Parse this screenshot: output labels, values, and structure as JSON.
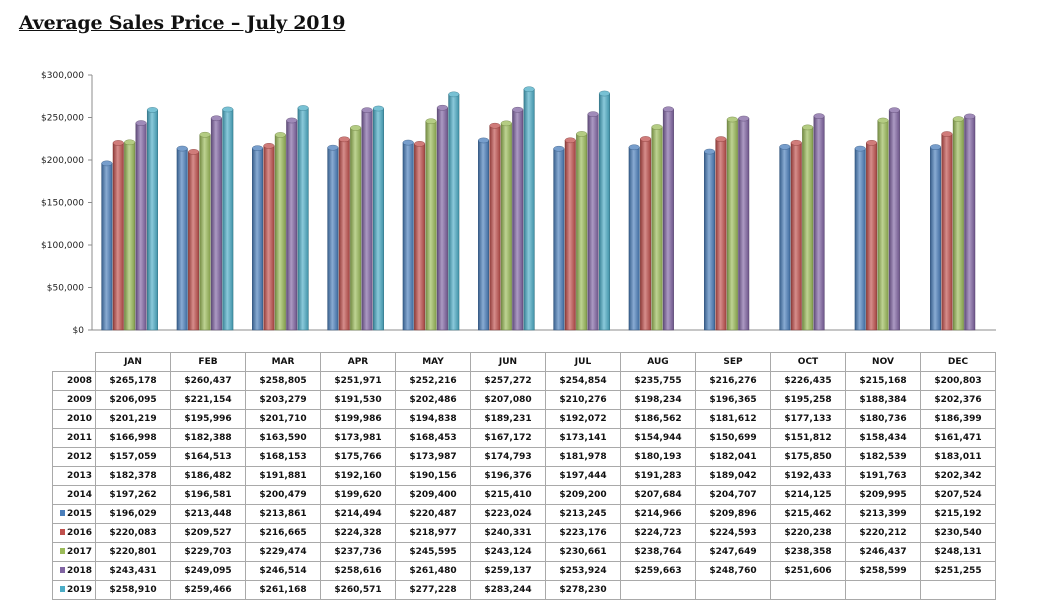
{
  "page": {
    "title": "Average Sales Price – July 2019"
  },
  "chart_data": {
    "type": "bar",
    "title": "Average Sales Price – July 2019",
    "xlabel": "",
    "ylabel": "",
    "ylim": [
      0,
      300000
    ],
    "yticks": [
      "$0",
      "$50,000",
      "$100,000",
      "$150,000",
      "$200,000",
      "$250,000",
      "$300,000"
    ],
    "ytick_values": [
      0,
      50000,
      100000,
      150000,
      200000,
      250000,
      300000
    ],
    "grid": false,
    "legend": "in-table",
    "categories": [
      "JAN",
      "FEB",
      "MAR",
      "APR",
      "MAY",
      "JUN",
      "JUL",
      "AUG",
      "SEP",
      "OCT",
      "NOV",
      "DEC"
    ],
    "series": [
      {
        "name": "2015",
        "color": "#4a7ebb",
        "values": [
          196029,
          213448,
          213861,
          214494,
          220487,
          223024,
          213245,
          214966,
          209896,
          215462,
          213399,
          215192
        ]
      },
      {
        "name": "2016",
        "color": "#c0504d",
        "values": [
          220083,
          209527,
          216665,
          224328,
          218977,
          240331,
          223176,
          224723,
          224593,
          220238,
          220212,
          230540
        ]
      },
      {
        "name": "2017",
        "color": "#9bbb59",
        "values": [
          220801,
          229703,
          229474,
          237736,
          245595,
          243124,
          230661,
          238764,
          247649,
          238358,
          246437,
          248131
        ]
      },
      {
        "name": "2018",
        "color": "#8064a2",
        "values": [
          243431,
          249095,
          246514,
          258616,
          261480,
          259137,
          253924,
          259663,
          248760,
          251606,
          258599,
          251255
        ]
      },
      {
        "name": "2019",
        "color": "#4bacc6",
        "values": [
          258910,
          259466,
          261168,
          260571,
          277228,
          283244,
          278230,
          null,
          null,
          null,
          null,
          null
        ]
      }
    ],
    "table": {
      "header": [
        "JAN",
        "FEB",
        "MAR",
        "APR",
        "MAY",
        "JUN",
        "JUL",
        "AUG",
        "SEP",
        "OCT",
        "NOV",
        "DEC"
      ],
      "rows": [
        {
          "year": "2008",
          "cells": [
            "$265,178",
            "$260,437",
            "$258,805",
            "$251,971",
            "$252,216",
            "$257,272",
            "$254,854",
            "$235,755",
            "$216,276",
            "$226,435",
            "$215,168",
            "$200,803"
          ]
        },
        {
          "year": "2009",
          "cells": [
            "$206,095",
            "$221,154",
            "$203,279",
            "$191,530",
            "$202,486",
            "$207,080",
            "$210,276",
            "$198,234",
            "$196,365",
            "$195,258",
            "$188,384",
            "$202,376"
          ]
        },
        {
          "year": "2010",
          "cells": [
            "$201,219",
            "$195,996",
            "$201,710",
            "$199,986",
            "$194,838",
            "$189,231",
            "$192,072",
            "$186,562",
            "$181,612",
            "$177,133",
            "$180,736",
            "$186,399"
          ]
        },
        {
          "year": "2011",
          "cells": [
            "$166,998",
            "$182,388",
            "$163,590",
            "$173,981",
            "$168,453",
            "$167,172",
            "$173,141",
            "$154,944",
            "$150,699",
            "$151,812",
            "$158,434",
            "$161,471"
          ]
        },
        {
          "year": "2012",
          "cells": [
            "$157,059",
            "$164,513",
            "$168,153",
            "$175,766",
            "$173,987",
            "$174,793",
            "$181,978",
            "$180,193",
            "$182,041",
            "$175,850",
            "$182,539",
            "$183,011"
          ]
        },
        {
          "year": "2013",
          "cells": [
            "$182,378",
            "$186,482",
            "$191,881",
            "$192,160",
            "$190,156",
            "$196,376",
            "$197,444",
            "$191,283",
            "$189,042",
            "$192,433",
            "$191,763",
            "$202,342"
          ]
        },
        {
          "year": "2014",
          "cells": [
            "$197,262",
            "$196,581",
            "$200,479",
            "$199,620",
            "$209,400",
            "$215,410",
            "$209,200",
            "$207,684",
            "$204,707",
            "$214,125",
            "$209,995",
            "$207,524"
          ]
        },
        {
          "year": "2015",
          "legend_color": "#4a7ebb",
          "cells": [
            "$196,029",
            "$213,448",
            "$213,861",
            "$214,494",
            "$220,487",
            "$223,024",
            "$213,245",
            "$214,966",
            "$209,896",
            "$215,462",
            "$213,399",
            "$215,192"
          ]
        },
        {
          "year": "2016",
          "legend_color": "#c0504d",
          "cells": [
            "$220,083",
            "$209,527",
            "$216,665",
            "$224,328",
            "$218,977",
            "$240,331",
            "$223,176",
            "$224,723",
            "$224,593",
            "$220,238",
            "$220,212",
            "$230,540"
          ]
        },
        {
          "year": "2017",
          "legend_color": "#9bbb59",
          "cells": [
            "$220,801",
            "$229,703",
            "$229,474",
            "$237,736",
            "$245,595",
            "$243,124",
            "$230,661",
            "$238,764",
            "$247,649",
            "$238,358",
            "$246,437",
            "$248,131"
          ]
        },
        {
          "year": "2018",
          "legend_color": "#8064a2",
          "cells": [
            "$243,431",
            "$249,095",
            "$246,514",
            "$258,616",
            "$261,480",
            "$259,137",
            "$253,924",
            "$259,663",
            "$248,760",
            "$251,606",
            "$258,599",
            "$251,255"
          ]
        },
        {
          "year": "2019",
          "legend_color": "#4bacc6",
          "cells": [
            "$258,910",
            "$259,466",
            "$261,168",
            "$260,571",
            "$277,228",
            "$283,244",
            "$278,230",
            "",
            "",
            "",
            "",
            ""
          ]
        }
      ]
    }
  }
}
